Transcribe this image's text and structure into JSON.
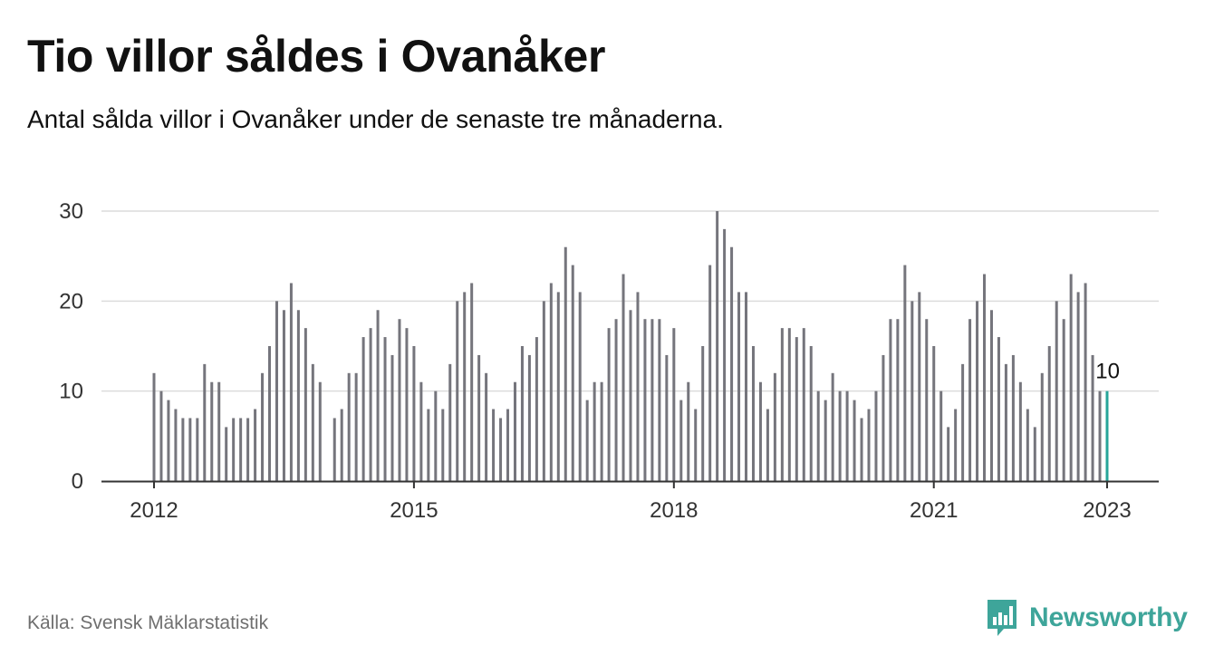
{
  "title": "Tio villor såldes i Ovanåker",
  "subtitle": "Antal sålda villor i Ovanåker under de senaste tre månaderna.",
  "source": "Källa: Svensk Mäklarstatistik",
  "brand": {
    "name": "Newsworthy",
    "icon": "newsworthy-logo-icon",
    "color": "#3ea59a"
  },
  "colors": {
    "bar": "#75757c",
    "highlight": "#27a59a",
    "grid": "#dcdcdc",
    "axis": "#333333"
  },
  "chart_data": {
    "type": "bar",
    "title": "Tio villor såldes i Ovanåker",
    "subtitle": "Antal sålda villor i Ovanåker under de senaste tre månaderna.",
    "xlabel": "",
    "ylabel": "",
    "ylim": [
      0,
      30
    ],
    "yticks": [
      0,
      10,
      20,
      30
    ],
    "xticks": [
      {
        "label": "2012",
        "index": 0
      },
      {
        "label": "2015",
        "index": 36
      },
      {
        "label": "2018",
        "index": 72
      },
      {
        "label": "2021",
        "index": 108
      },
      {
        "label": "2023",
        "index": 132
      }
    ],
    "grid": true,
    "start": "2012-01",
    "frequency": "monthly",
    "highlight_last": true,
    "last_label": "10",
    "values": [
      12,
      10,
      9,
      8,
      7,
      7,
      7,
      13,
      11,
      11,
      6,
      7,
      7,
      7,
      8,
      12,
      15,
      20,
      19,
      22,
      19,
      17,
      13,
      11,
      null,
      7,
      8,
      12,
      12,
      16,
      17,
      19,
      16,
      14,
      18,
      17,
      15,
      11,
      8,
      10,
      8,
      13,
      20,
      21,
      22,
      14,
      12,
      8,
      7,
      8,
      11,
      15,
      14,
      16,
      20,
      22,
      21,
      26,
      24,
      21,
      9,
      11,
      11,
      17,
      18,
      23,
      19,
      21,
      18,
      18,
      18,
      14,
      17,
      9,
      11,
      8,
      15,
      24,
      30,
      28,
      26,
      21,
      21,
      15,
      11,
      8,
      12,
      17,
      17,
      16,
      17,
      15,
      10,
      9,
      12,
      10,
      10,
      9,
      7,
      8,
      10,
      14,
      18,
      18,
      24,
      20,
      21,
      18,
      15,
      10,
      6,
      8,
      13,
      18,
      20,
      23,
      19,
      16,
      13,
      14,
      11,
      8,
      6,
      12,
      15,
      20,
      18,
      23,
      21,
      22,
      14,
      10,
      10
    ]
  }
}
